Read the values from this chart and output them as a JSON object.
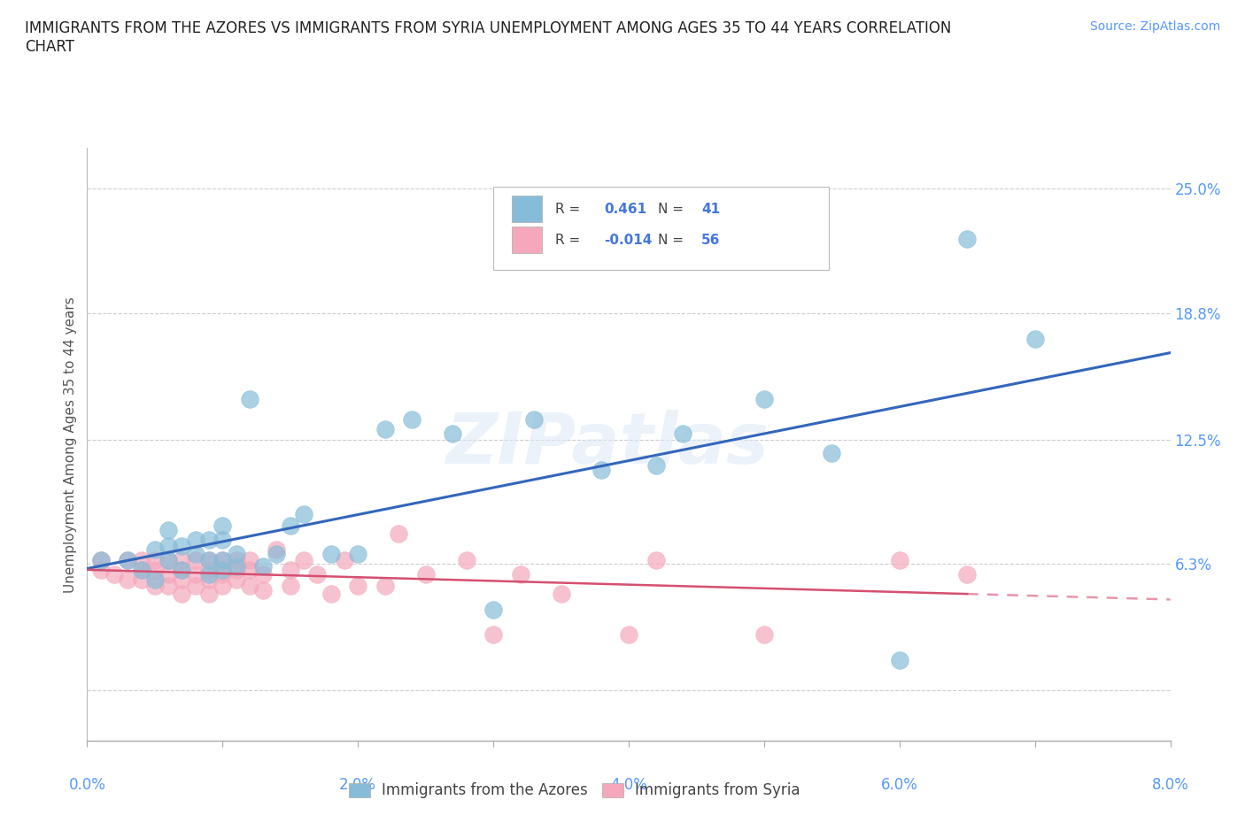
{
  "title": "IMMIGRANTS FROM THE AZORES VS IMMIGRANTS FROM SYRIA UNEMPLOYMENT AMONG AGES 35 TO 44 YEARS CORRELATION\nCHART",
  "source_text": "Source: ZipAtlas.com",
  "ylabel": "Unemployment Among Ages 35 to 44 years",
  "xlim": [
    0.0,
    0.08
  ],
  "ylim": [
    -0.025,
    0.27
  ],
  "yticks": [
    0.0,
    0.063,
    0.125,
    0.188,
    0.25
  ],
  "ytick_labels": [
    "",
    "6.3%",
    "12.5%",
    "18.8%",
    "25.0%"
  ],
  "xticks": [
    0.0,
    0.01,
    0.02,
    0.03,
    0.04,
    0.05,
    0.06,
    0.07,
    0.08
  ],
  "xtick_labels": [
    "",
    "",
    "",
    "",
    "",
    "",
    "",
    "",
    ""
  ],
  "xtick_display": [
    0.0,
    0.02,
    0.04,
    0.06,
    0.08
  ],
  "xtick_display_labels": [
    "0.0%",
    "2.0%",
    "4.0%",
    "6.0%",
    "8.0%"
  ],
  "grid_color": "#c8c8c8",
  "background_color": "#ffffff",
  "watermark_text": "ZIPatlas",
  "legend_R_azores": "0.461",
  "legend_N_azores": "41",
  "legend_R_syria": "-0.014",
  "legend_N_syria": "56",
  "azores_color": "#87bcd8",
  "syria_color": "#f5a8bc",
  "trendline_azores_color": "#3366bb",
  "trendline_syria_color": "#d45070",
  "azores_x": [
    0.001,
    0.003,
    0.004,
    0.005,
    0.005,
    0.006,
    0.006,
    0.006,
    0.007,
    0.007,
    0.008,
    0.008,
    0.009,
    0.009,
    0.009,
    0.01,
    0.01,
    0.01,
    0.01,
    0.011,
    0.011,
    0.012,
    0.013,
    0.014,
    0.015,
    0.016,
    0.018,
    0.02,
    0.022,
    0.024,
    0.027,
    0.03,
    0.033,
    0.038,
    0.042,
    0.044,
    0.05,
    0.055,
    0.06,
    0.065,
    0.07
  ],
  "azores_y": [
    0.065,
    0.065,
    0.06,
    0.055,
    0.07,
    0.065,
    0.072,
    0.08,
    0.06,
    0.072,
    0.068,
    0.075,
    0.058,
    0.065,
    0.075,
    0.06,
    0.065,
    0.075,
    0.082,
    0.062,
    0.068,
    0.145,
    0.062,
    0.068,
    0.082,
    0.088,
    0.068,
    0.068,
    0.13,
    0.135,
    0.128,
    0.04,
    0.135,
    0.11,
    0.112,
    0.128,
    0.145,
    0.118,
    0.015,
    0.225,
    0.175
  ],
  "syria_x": [
    0.001,
    0.001,
    0.002,
    0.003,
    0.003,
    0.004,
    0.004,
    0.004,
    0.005,
    0.005,
    0.005,
    0.006,
    0.006,
    0.006,
    0.007,
    0.007,
    0.007,
    0.007,
    0.008,
    0.008,
    0.008,
    0.009,
    0.009,
    0.009,
    0.009,
    0.01,
    0.01,
    0.01,
    0.011,
    0.011,
    0.011,
    0.012,
    0.012,
    0.012,
    0.013,
    0.013,
    0.014,
    0.015,
    0.015,
    0.016,
    0.017,
    0.018,
    0.019,
    0.02,
    0.022,
    0.023,
    0.025,
    0.028,
    0.03,
    0.032,
    0.035,
    0.04,
    0.042,
    0.05,
    0.06,
    0.065
  ],
  "syria_y": [
    0.065,
    0.06,
    0.058,
    0.055,
    0.065,
    0.055,
    0.06,
    0.065,
    0.052,
    0.06,
    0.065,
    0.052,
    0.058,
    0.065,
    0.048,
    0.055,
    0.06,
    0.065,
    0.052,
    0.058,
    0.065,
    0.048,
    0.055,
    0.06,
    0.065,
    0.052,
    0.058,
    0.065,
    0.055,
    0.06,
    0.065,
    0.052,
    0.06,
    0.065,
    0.05,
    0.058,
    0.07,
    0.052,
    0.06,
    0.065,
    0.058,
    0.048,
    0.065,
    0.052,
    0.052,
    0.078,
    0.058,
    0.065,
    0.028,
    0.058,
    0.048,
    0.028,
    0.065,
    0.028,
    0.065,
    0.058
  ]
}
